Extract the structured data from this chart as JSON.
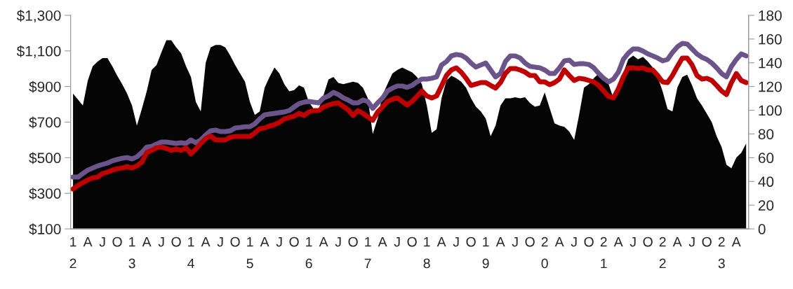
{
  "chart_data": {
    "type": "line",
    "categories": [
      "1\n2",
      null,
      null,
      "A",
      null,
      null,
      "J",
      null,
      null,
      "O",
      null,
      null,
      "1\n3",
      null,
      null,
      "A",
      null,
      null,
      "J",
      null,
      null,
      "O",
      null,
      null,
      "1\n4",
      null,
      null,
      "A",
      null,
      null,
      "J",
      null,
      null,
      "O",
      null,
      null,
      "1\n5",
      null,
      null,
      "A",
      null,
      null,
      "J",
      null,
      null,
      "O",
      null,
      null,
      "1\n6",
      null,
      null,
      "A",
      null,
      null,
      "J",
      null,
      null,
      "O",
      null,
      null,
      "1\n7",
      null,
      null,
      "A",
      null,
      null,
      "J",
      null,
      null,
      "O",
      null,
      null,
      "1\n8",
      null,
      null,
      "A",
      null,
      null,
      "J",
      null,
      null,
      "O",
      null,
      null,
      "1\n9",
      null,
      null,
      "A",
      null,
      null,
      "J",
      null,
      null,
      "O",
      null,
      null,
      "2\n0",
      null,
      null,
      "A",
      null,
      null,
      "J",
      null,
      null,
      "O",
      null,
      null,
      "2\n1",
      null,
      null,
      "A",
      null,
      null,
      "J",
      null,
      null,
      "O",
      null,
      null,
      "2\n2",
      null,
      null,
      "A",
      null,
      null,
      "J",
      null,
      null,
      "O",
      null,
      null,
      "2\n3",
      null,
      null,
      "A",
      null,
      null
    ],
    "series": [
      {
        "type": "area",
        "axis": "y2",
        "color": "#050505",
        "values": [
          114,
          109,
          104,
          125,
          137,
          141,
          144,
          144,
          137,
          129,
          122,
          114,
          104,
          87,
          101,
          116,
          134,
          138,
          149,
          159,
          159,
          153,
          148,
          137,
          128,
          107,
          99,
          140,
          153,
          155,
          155,
          153,
          146,
          138,
          131,
          124,
          107,
          96,
          99,
          119,
          128,
          136,
          131,
          122,
          116,
          117,
          121,
          119,
          107,
          101,
          101,
          113,
          126,
          128,
          123,
          122,
          123,
          124,
          123,
          119,
          110,
          80,
          93,
          113,
          122,
          131,
          134,
          136,
          134,
          132,
          128,
          122,
          104,
          81,
          84,
          110,
          125,
          129,
          127,
          124,
          119,
          110,
          103,
          99,
          93,
          78,
          87,
          104,
          110,
          110,
          111,
          110,
          111,
          106,
          103,
          104,
          115,
          102,
          89,
          87,
          86,
          82,
          75,
          96,
          119,
          122,
          127,
          131,
          128,
          122,
          110,
          116,
          131,
          143,
          146,
          143,
          145,
          141,
          136,
          128,
          116,
          101,
          99,
          119,
          128,
          130,
          121,
          110,
          104,
          97,
          90,
          78,
          69,
          54,
          51,
          60,
          64,
          72
        ]
      },
      {
        "axis": "y",
        "color": "#6a548a",
        "values": [
          391,
          391,
          411,
          430,
          442,
          454,
          462,
          470,
          482,
          490,
          497,
          501,
          493,
          505,
          529,
          560,
          564,
          576,
          588,
          588,
          584,
          580,
          584,
          580,
          600,
          584,
          600,
          627,
          651,
          655,
          647,
          647,
          651,
          667,
          670,
          674,
          674,
          690,
          718,
          741,
          745,
          749,
          753,
          757,
          765,
          785,
          804,
          812,
          816,
          812,
          808,
          836,
          847,
          867,
          855,
          836,
          824,
          808,
          808,
          824,
          816,
          777,
          808,
          836,
          875,
          891,
          903,
          903,
          895,
          906,
          926,
          942,
          942,
          946,
          954,
          1021,
          1040,
          1072,
          1080,
          1076,
          1060,
          1032,
          1009,
          1021,
          1032,
          993,
          954,
          973,
          1040,
          1072,
          1072,
          1060,
          1032,
          1013,
          1009,
          1005,
          993,
          973,
          973,
          1005,
          1044,
          1048,
          1024,
          1028,
          1028,
          1024,
          1005,
          973,
          946,
          926,
          942,
          981,
          1052,
          1087,
          1111,
          1111,
          1099,
          1083,
          1072,
          1060,
          1044,
          1052,
          1091,
          1123,
          1142,
          1139,
          1111,
          1083,
          1064,
          1052,
          1032,
          1005,
          973,
          954,
          1013,
          1052,
          1083,
          1072
        ]
      },
      {
        "axis": "y",
        "color": "#c00000",
        "values": [
          324,
          344,
          360,
          375,
          387,
          391,
          411,
          419,
          430,
          438,
          442,
          450,
          442,
          454,
          474,
          529,
          541,
          556,
          560,
          552,
          541,
          549,
          541,
          556,
          521,
          549,
          580,
          607,
          623,
          600,
          600,
          600,
          615,
          619,
          619,
          619,
          619,
          639,
          663,
          667,
          678,
          686,
          698,
          718,
          725,
          733,
          749,
          737,
          757,
          765,
          765,
          785,
          796,
          804,
          808,
          788,
          769,
          737,
          765,
          749,
          729,
          710,
          757,
          785,
          816,
          828,
          836,
          816,
          796,
          816,
          844,
          875,
          847,
          836,
          847,
          903,
          962,
          993,
          1005,
          981,
          946,
          906,
          914,
          922,
          922,
          906,
          891,
          922,
          973,
          1001,
          1001,
          993,
          981,
          962,
          962,
          926,
          926,
          910,
          922,
          942,
          993,
          962,
          934,
          946,
          942,
          934,
          926,
          906,
          875,
          844,
          836,
          887,
          954,
          1005,
          1005,
          1001,
          1005,
          993,
          993,
          962,
          926,
          922,
          962,
          1013,
          1060,
          1060,
          1021,
          962,
          942,
          946,
          934,
          906,
          875,
          855,
          922,
          973,
          934,
          922
        ]
      }
    ],
    "ylim": [
      100,
      1300
    ],
    "yticks": [
      {
        "value": 100,
        "label": "$100"
      },
      {
        "value": 300,
        "label": "$300"
      },
      {
        "value": 500,
        "label": "$500"
      },
      {
        "value": 700,
        "label": "$700"
      },
      {
        "value": 900,
        "label": "$900"
      },
      {
        "value": 1100,
        "label": "$1,100"
      },
      {
        "value": 1300,
        "label": "$1,300"
      }
    ],
    "y2lim": [
      0,
      180
    ],
    "y2ticks": [
      0,
      20,
      40,
      60,
      80,
      100,
      120,
      140,
      160,
      180
    ],
    "grid": false,
    "marker": "none",
    "line_style": "solid"
  }
}
